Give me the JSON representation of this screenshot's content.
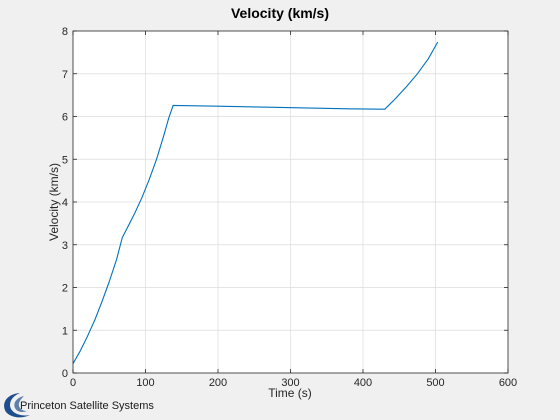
{
  "chart_data": {
    "type": "line",
    "title": "Velocity (km/s)",
    "xlabel": "Time (s)",
    "ylabel": "Velocity (km/s)",
    "xlim": [
      0,
      600
    ],
    "ylim": [
      0,
      8
    ],
    "xticks": [
      0,
      100,
      200,
      300,
      400,
      500,
      600
    ],
    "yticks": [
      0,
      1,
      2,
      3,
      4,
      5,
      6,
      7,
      8
    ],
    "grid": true,
    "legend": "none",
    "series": [
      {
        "color": "#0072bd",
        "x": [
          0,
          10,
          20,
          30,
          40,
          50,
          60,
          68,
          75,
          85,
          95,
          105,
          115,
          125,
          132,
          138,
          200,
          260,
          320,
          380,
          430,
          445,
          460,
          475,
          490,
          503
        ],
        "y": [
          0.22,
          0.52,
          0.86,
          1.24,
          1.67,
          2.14,
          2.65,
          3.17,
          3.4,
          3.73,
          4.1,
          4.52,
          4.99,
          5.54,
          5.96,
          6.26,
          6.24,
          6.22,
          6.2,
          6.18,
          6.17,
          6.42,
          6.7,
          7.0,
          7.35,
          7.74
        ]
      }
    ]
  },
  "watermark": {
    "text": "Princeton Satellite Systems",
    "logo_color": "#1f4e8c"
  }
}
